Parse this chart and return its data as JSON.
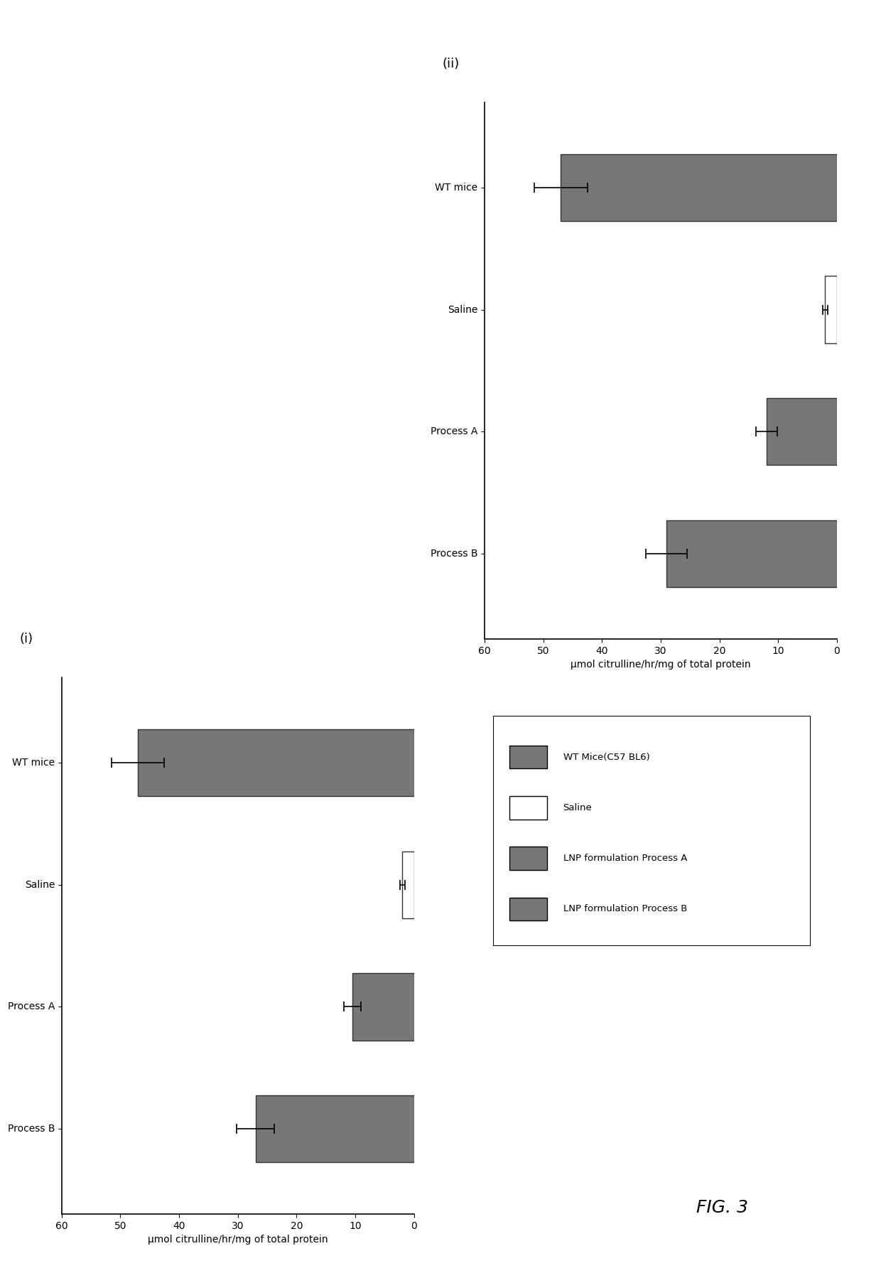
{
  "chart_i": {
    "label": "(i)",
    "categories": [
      "WT mice",
      "Saline",
      "Process A",
      "Process B"
    ],
    "values": [
      47.0,
      2.0,
      10.5,
      27.0
    ],
    "errors": [
      4.5,
      0.4,
      1.5,
      3.2
    ],
    "colors": [
      "#777777",
      "#ffffff",
      "#777777",
      "#777777"
    ],
    "edge_colors": [
      "#333333",
      "#333333",
      "#333333",
      "#333333"
    ]
  },
  "chart_ii": {
    "label": "(ii)",
    "categories": [
      "WT mice",
      "Saline",
      "Process A",
      "Process B"
    ],
    "values": [
      47.0,
      2.0,
      12.0,
      29.0
    ],
    "errors": [
      4.5,
      0.4,
      1.8,
      3.5
    ],
    "colors": [
      "#777777",
      "#ffffff",
      "#777777",
      "#777777"
    ],
    "edge_colors": [
      "#333333",
      "#333333",
      "#333333",
      "#333333"
    ]
  },
  "xlabel": "μmol citrulline/hr/mg of total protein",
  "xlim": [
    0,
    60
  ],
  "xticks": [
    0,
    10,
    20,
    30,
    40,
    50,
    60
  ],
  "legend_labels": [
    "WT Mice(C57 BL6)",
    "Saline",
    "LNP formulation Process A",
    "LNP formulation Process B"
  ],
  "legend_colors": [
    "#777777",
    "#ffffff",
    "#777777",
    "#777777"
  ],
  "fig_label": "FIG. 3",
  "background_color": "#ffffff"
}
